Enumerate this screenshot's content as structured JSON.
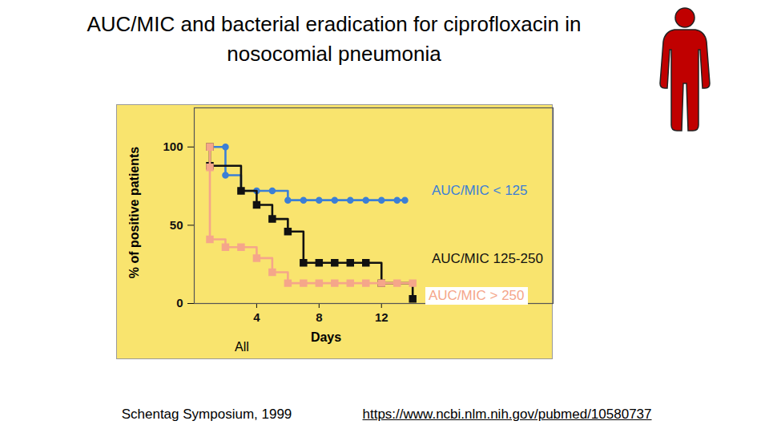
{
  "chart_data": {
    "type": "line",
    "title": "AUC/MIC and bacterial eradication for ciprofloxacin in nosocomial pneumonia",
    "x_label": "Days",
    "y_label": "% of positive patients",
    "annotations": [
      "All"
    ],
    "source": "Schentag Symposium, 1999",
    "url": "https://www.ncbi.nlm.nih.gov/pubmed/10580737",
    "xlim": [
      0,
      23
    ],
    "ylim": [
      0,
      125
    ],
    "xticks": [
      4,
      8,
      12
    ],
    "yticks": [
      0,
      50,
      100
    ],
    "series": [
      {
        "name": "AUC/MIC < 125",
        "color": "#3B7FD6",
        "marker": "circle",
        "x": [
          1,
          2,
          2,
          3,
          4,
          5,
          6,
          7,
          8,
          9,
          10,
          11,
          12,
          13,
          13.5
        ],
        "values": [
          100,
          100,
          82,
          72,
          72,
          72,
          66,
          66,
          66,
          66,
          66,
          66,
          66,
          66,
          66
        ]
      },
      {
        "name": "AUC/MIC 125-250",
        "color": "#111111",
        "marker": "square",
        "x": [
          1,
          1,
          3,
          4,
          5,
          6,
          7,
          8,
          9,
          10,
          11,
          12,
          14
        ],
        "values": [
          100,
          88,
          72,
          63,
          54,
          46,
          26,
          26,
          26,
          26,
          26,
          13,
          3
        ]
      },
      {
        "name": "AUC/MIC > 250",
        "color": "#F5A68A",
        "marker": "square",
        "x": [
          1,
          1,
          1,
          2,
          3,
          4,
          5,
          6,
          7,
          8,
          9,
          10,
          11,
          12,
          13,
          14
        ],
        "values": [
          100,
          87,
          41,
          36,
          36,
          29,
          20,
          13,
          13,
          13,
          13,
          13,
          13,
          13,
          13,
          13
        ]
      }
    ]
  }
}
